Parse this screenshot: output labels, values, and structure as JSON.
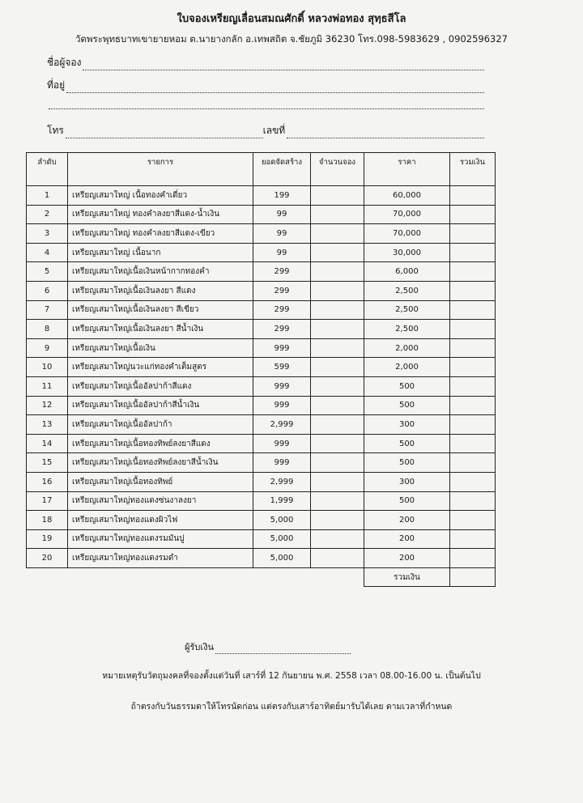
{
  "header": {
    "title": "ใบจองเหรียญเลื่อนสมณศักดิ์  หลวงพ่อทอง สุทฺธสีโล",
    "address": "วัดพระพุทธบาทเขายายหอม ต.นายางกลัก อ.เทพสถิต จ.ชัยภูมิ 36230  โทร.098-5983629 , 0902596327"
  },
  "form": {
    "name_label": "ชื่อผู้จอง",
    "address_label": "ที่อยู่",
    "phone_label": "โทร",
    "number_label": "เลขที่"
  },
  "table": {
    "headers": [
      "ลำดับ",
      "รายการ",
      "ยอดจัดสร้าง",
      "จำนวนจอง",
      "ราคา",
      "รวมเงิน"
    ],
    "rows": [
      {
        "no": "1",
        "item": "เหรียญเสมาใหญ่ เนื้อทองคำเดี่ยว",
        "qty": "199",
        "price": "60,000"
      },
      {
        "no": "2",
        "item": "เหรียญเสมาใหญ่ ทองคำลงยาสีแดง-น้ำเงิน",
        "qty": "99",
        "price": "70,000"
      },
      {
        "no": "3",
        "item": "เหรียญเสมาใหญ่ ทองคำลงยาสีแดง-เขียว",
        "qty": "99",
        "price": "70,000"
      },
      {
        "no": "4",
        "item": "เหรียญเสมาใหญ่ เนื้อนาก",
        "qty": "99",
        "price": "30,000"
      },
      {
        "no": "5",
        "item": "เหรียญเสมาใหญ่เนื้อเงินหน้ากากทองคำ",
        "qty": "299",
        "price": "6,000"
      },
      {
        "no": "6",
        "item": "เหรียญเสมาใหญ่เนื้อเงินลงยา สีแดง",
        "qty": "299",
        "price": "2,500"
      },
      {
        "no": "7",
        "item": "เหรียญเสมาใหญ่เนื้อเงินลงยา สีเขียว",
        "qty": "299",
        "price": "2,500"
      },
      {
        "no": "8",
        "item": "เหรียญเสมาใหญ่เนื้อเงินลงยา สีน้ำเงิน",
        "qty": "299",
        "price": "2,500"
      },
      {
        "no": "9",
        "item": "เหรียญเสมาใหญ่เนื้อเงิน",
        "qty": "999",
        "price": "2,000"
      },
      {
        "no": "10",
        "item": "เหรียญเสมาใหญ่นวะแก่ทองคำเต็มสูตร",
        "qty": "599",
        "price": "2,000"
      },
      {
        "no": "11",
        "item": "เหรียญเสมาใหญ่เนื้ออัลปาก้าสีแดง",
        "qty": "999",
        "price": "500"
      },
      {
        "no": "12",
        "item": "เหรียญเสมาใหญ่เนื้ออัลปาก้าสีน้ำเงิน",
        "qty": "999",
        "price": "500"
      },
      {
        "no": "13",
        "item": "เหรียญเสมาใหญ่เนื้ออัลปาก้า",
        "qty": "2,999",
        "price": "300"
      },
      {
        "no": "14",
        "item": "เหรียญเสมาใหญ่เนื้อทองทิพย์ลงยาสีแดง",
        "qty": "999",
        "price": "500"
      },
      {
        "no": "15",
        "item": "เหรียญเสมาใหญ่เนื้อทองทิพย์ลงยาสีน้ำเงิน",
        "qty": "999",
        "price": "500"
      },
      {
        "no": "16",
        "item": "เหรียญเสมาใหญ่เนื้อทองทิพย์",
        "qty": "2,999",
        "price": "300"
      },
      {
        "no": "17",
        "item": "เหรียญเสมาใหญ่ทองแดงซ่นงาลงยา",
        "qty": "1,999",
        "price": "500"
      },
      {
        "no": "18",
        "item": "เหรียญเสมาใหญ่ทองแดงผิวไฟ",
        "qty": "5,000",
        "price": "200"
      },
      {
        "no": "19",
        "item": "เหรียญเสมาใหญ่ทองแดงรมมันปู",
        "qty": "5,000",
        "price": "200"
      },
      {
        "no": "20",
        "item": "เหรียญเสมาใหญ่ทองแดงรมดำ",
        "qty": "5,000",
        "price": "200"
      }
    ],
    "total_label": "รวมเงิน"
  },
  "footer": {
    "receiver_label": "ผู้รับเงิน",
    "note1": "หมายเหตุรับวัตถุมงคลที่จองตั้งแต่วันที่ เสาร์ที่ 12 กันยายน พ.ศ. 2558  เวลา 08.00-16.00 น. เป็นต้นไป",
    "note2": "ถ้าตรงกับวันธรรมดาให้โทรนัดก่อน แต่ตรงกับเสาร์อาทิตย์มารับได้เลย ตามเวลาที่กำหนด"
  }
}
